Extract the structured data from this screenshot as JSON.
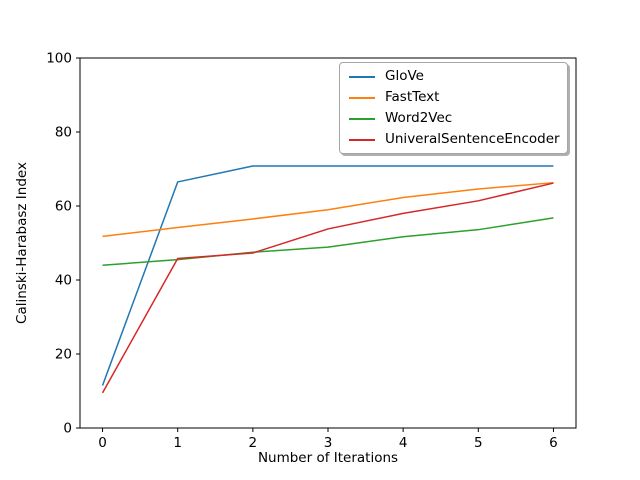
{
  "figure": {
    "background_color": "#ffffff",
    "axes_edge_color": "#000000",
    "text_color": "#000000"
  },
  "chart_data": {
    "type": "line",
    "title": "",
    "xlabel": "Number of Iterations",
    "ylabel": "Calinski-Harabasz Index",
    "x": [
      0,
      1,
      2,
      3,
      4,
      5,
      6
    ],
    "xticks": [
      0,
      1,
      2,
      3,
      4,
      5,
      6
    ],
    "yticks": [
      0,
      20,
      40,
      60,
      80,
      100
    ],
    "xlim": [
      -0.3,
      6.3
    ],
    "ylim": [
      0,
      100
    ],
    "grid": false,
    "series": [
      {
        "name": "GloVe",
        "color": "#1f77b4",
        "values": [
          11.5,
          66.5,
          70.8,
          70.8,
          70.8,
          70.8,
          70.8
        ]
      },
      {
        "name": "FastText",
        "color": "#ff7f0e",
        "values": [
          51.8,
          54.2,
          56.5,
          59.0,
          62.3,
          64.6,
          66.3
        ]
      },
      {
        "name": "Word2Vec",
        "color": "#2ca02c",
        "values": [
          44.0,
          45.5,
          47.5,
          48.9,
          51.7,
          53.6,
          56.8
        ]
      },
      {
        "name": "UniveralSentenceEncoder",
        "color": "#d62728",
        "values": [
          9.5,
          45.8,
          47.3,
          53.8,
          58.0,
          61.4,
          66.2
        ]
      }
    ],
    "legend": {
      "position": "upper right area",
      "frame": true,
      "shadow": true,
      "entries": [
        "GloVe",
        "FastText",
        "Word2Vec",
        "UniveralSentenceEncoder"
      ]
    }
  }
}
